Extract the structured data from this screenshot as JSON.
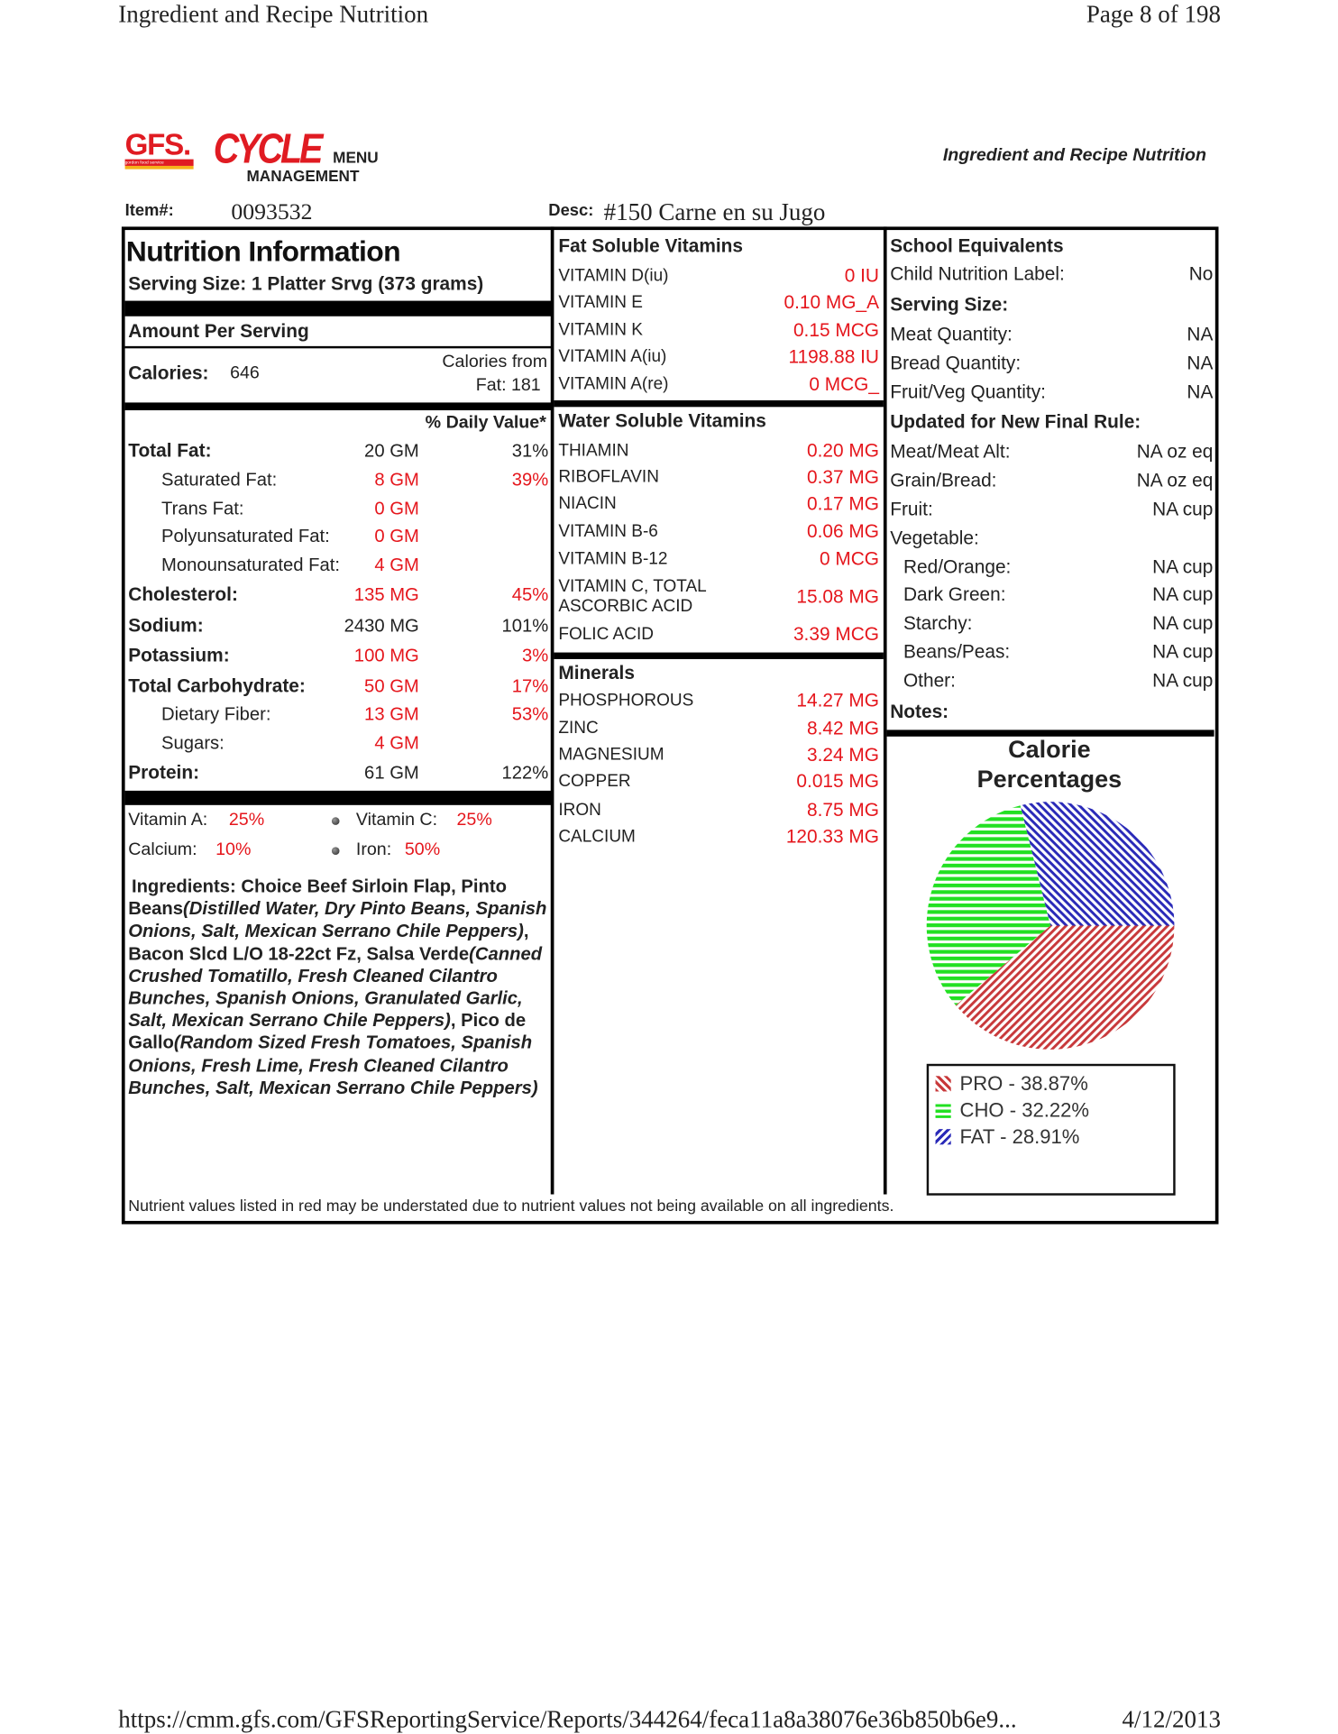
{
  "page_header": {
    "title": "Ingredient and Recipe Nutrition",
    "page": "Page 8 of 198"
  },
  "logo": {
    "gfs": "GFS.",
    "gfs_sub": "gordon food service",
    "cycle": "CYCLE",
    "menu": "MENU",
    "management": "MANAGEMENT"
  },
  "report_title": "Ingredient and Recipe Nutrition",
  "item": {
    "label": "Item#:",
    "value": "0093532",
    "desc_label": "Desc:",
    "desc_value": "#150 Carne en su Jugo"
  },
  "nutrition": {
    "heading": "Nutrition Information",
    "serving_size": "Serving Size:  1 Platter Srvg (373 grams)",
    "amount_per_serving": "Amount Per Serving",
    "calories_label": "Calories:",
    "calories_value": "646",
    "calories_from_fat_line1": "Calories from",
    "calories_from_fat_line2": "Fat:   181",
    "daily_value_header": "% Daily Value*",
    "rows": [
      {
        "name": "Total Fat:",
        "amount": "20 GM",
        "dv": "31%",
        "bold": true,
        "red": false
      },
      {
        "name": "Saturated Fat:",
        "amount": "8 GM",
        "dv": "39%",
        "indent": true,
        "red": true
      },
      {
        "name": "Trans Fat:",
        "amount": "0 GM",
        "dv": "",
        "indent": true,
        "red": true
      },
      {
        "name": "Polyunsaturated Fat:",
        "amount": "0 GM",
        "dv": "",
        "indent": true,
        "red": true
      },
      {
        "name": "Monounsaturated Fat:",
        "amount": "4 GM",
        "dv": "",
        "indent": true,
        "red": true
      },
      {
        "name": "Cholesterol:",
        "amount": "135 MG",
        "dv": "45%",
        "bold": true,
        "red": true
      },
      {
        "name": "Sodium:",
        "amount": "2430 MG",
        "dv": "101%",
        "bold": true,
        "red": false
      },
      {
        "name": "Potassium:",
        "amount": "100 MG",
        "dv": "3%",
        "bold": true,
        "red": true
      },
      {
        "name": "Total Carbohydrate:",
        "amount": "50 GM",
        "dv": "17%",
        "bold": true,
        "red": true
      },
      {
        "name": "Dietary Fiber:",
        "amount": "13 GM",
        "dv": "53%",
        "indent": true,
        "red": true
      },
      {
        "name": "Sugars:",
        "amount": "4 GM",
        "dv": "",
        "indent": true,
        "red": true
      },
      {
        "name": "Protein:",
        "amount": "61 GM",
        "dv": "122%",
        "bold": true,
        "red": false
      }
    ],
    "vitamin_a_label": "Vitamin A:",
    "vitamin_a": "25%",
    "vitamin_c_label": "Vitamin C:",
    "vitamin_c": "25%",
    "calcium_label": "Calcium:",
    "calcium": "10%",
    "iron_label": "Iron:",
    "iron": "50%",
    "ingredients_label": "Ingredients:",
    "ingredients": [
      {
        "text": "Choice Beef Sirloin Flap,  Pinto Beans",
        "italic": false
      },
      {
        "text": "(Distilled Water,  Dry Pinto Beans,  Spanish Onions,  Salt,  Mexican Serrano Chile Peppers)",
        "italic": true
      },
      {
        "text": ",  Bacon Slcd L/O 18-22ct Fz,  Salsa Verde",
        "italic": false
      },
      {
        "text": "(Canned Crushed Tomatillo,  Fresh Cleaned Cilantro Bunches,  Spanish Onions,  Granulated Garlic,  Salt,  Mexican Serrano Chile Peppers)",
        "italic": true
      },
      {
        "text": ",  Pico de Gallo",
        "italic": false
      },
      {
        "text": "(Random Sized Fresh Tomatoes,  Spanish Onions,  Fresh Lime,  Fresh Cleaned Cilantro Bunches,  Salt,  Mexican Serrano Chile Peppers)",
        "italic": true
      }
    ]
  },
  "fat_soluble": {
    "heading": "Fat Soluble Vitamins",
    "rows": [
      {
        "name": "VITAMIN D(iu)",
        "value": "0 IU"
      },
      {
        "name": "VITAMIN E",
        "value": "0.10 MG_A"
      },
      {
        "name": "VITAMIN K",
        "value": "0.15 MCG"
      },
      {
        "name": "VITAMIN A(iu)",
        "value": "1198.88 IU"
      },
      {
        "name": "VITAMIN A(re)",
        "value": "0 MCG_"
      }
    ]
  },
  "water_soluble": {
    "heading": "Water Soluble Vitamins",
    "rows": [
      {
        "name": "THIAMIN",
        "value": "0.20 MG"
      },
      {
        "name": "RIBOFLAVIN",
        "value": "0.37 MG"
      },
      {
        "name": "NIACIN",
        "value": "0.17 MG"
      },
      {
        "name": "VITAMIN B-6",
        "value": "0.06 MG"
      },
      {
        "name": "VITAMIN B-12",
        "value": "0 MCG"
      },
      {
        "name": "VITAMIN C, TOTAL",
        "name2": "ASCORBIC ACID",
        "value": "15.08 MG"
      },
      {
        "name": "FOLIC ACID",
        "value": "3.39 MCG"
      }
    ]
  },
  "minerals": {
    "heading": "Minerals",
    "rows": [
      {
        "name": "PHOSPHOROUS",
        "value": "14.27 MG"
      },
      {
        "name": "ZINC",
        "value": "8.42 MG"
      },
      {
        "name": "MAGNESIUM",
        "value": "3.24 MG"
      },
      {
        "name": "COPPER",
        "value": "0.015 MG"
      },
      {
        "name": "IRON",
        "value": "8.75 MG"
      },
      {
        "name": "CALCIUM",
        "value": "120.33 MG"
      }
    ]
  },
  "school": {
    "heading": "School Equivalents",
    "child_label": "Child Nutrition Label:",
    "child_value": "No",
    "serving_heading": "Serving Size:",
    "serving_rows": [
      {
        "name": "Meat Quantity:",
        "value": "NA"
      },
      {
        "name": "Bread Quantity:",
        "value": "NA"
      },
      {
        "name": "Fruit/Veg Quantity:",
        "value": "NA"
      }
    ],
    "rule_heading": "Updated for New Final Rule:",
    "rule_rows": [
      {
        "name": "Meat/Meat Alt:",
        "value": "NA oz eq"
      },
      {
        "name": "Grain/Bread:",
        "value": "NA oz eq"
      },
      {
        "name": "Fruit:",
        "value": "NA cup"
      },
      {
        "name": "Vegetable:",
        "value": ""
      },
      {
        "name": "Red/Orange:",
        "value": "NA cup",
        "indent": true
      },
      {
        "name": "Dark Green:",
        "value": "NA cup",
        "indent": true
      },
      {
        "name": "Starchy:",
        "value": "NA cup",
        "indent": true
      },
      {
        "name": "Beans/Peas:",
        "value": "NA cup",
        "indent": true
      },
      {
        "name": "Other:",
        "value": "NA cup",
        "indent": true
      }
    ],
    "notes_label": "Notes:"
  },
  "chart_data": {
    "type": "pie",
    "title": "Calorie Percentages",
    "title_line1": "Calorie",
    "title_line2": "Percentages",
    "slices": [
      {
        "label": "PRO - 38.87%",
        "name": "PRO",
        "value": 38.87,
        "color": "#c8393b",
        "pattern": "diagonal-back"
      },
      {
        "label": "CHO - 32.22%",
        "name": "CHO",
        "value": 32.22,
        "color": "#22e022",
        "pattern": "horizontal"
      },
      {
        "label": "FAT - 28.91%",
        "name": "FAT",
        "value": 28.91,
        "color": "#2a2ab8",
        "pattern": "diagonal-forward"
      }
    ],
    "legend_position": "bottom"
  },
  "footnote": "Nutrient values listed in red may be understated due to nutrient values not being available on all ingredients.",
  "page_footer": {
    "url": "https://cmm.gfs.com/GFSReportingService/Reports/344264/feca11a8a38076e36b850b6e9...",
    "date": "4/12/2013"
  }
}
